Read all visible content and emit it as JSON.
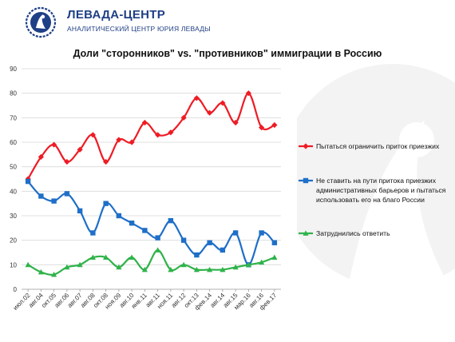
{
  "header": {
    "org_name": "ЛЕВАДА-ЦЕНТР",
    "org_subtitle": "АНАЛИТИЧЕСКИЙ ЦЕНТР ЮРИЯ ЛЕВАДЫ"
  },
  "chart_data": {
    "type": "line",
    "title": "Доли \"сторонников\" vs. \"противников\" иммиграции в Россию",
    "xlabel": "",
    "ylabel": "",
    "ylim": [
      0,
      90
    ],
    "yticks": [
      0,
      10,
      20,
      30,
      40,
      50,
      60,
      70,
      80,
      90
    ],
    "grid": true,
    "legend_position": "right",
    "x": [
      "июл.02",
      "авг.04",
      "окт.05",
      "авг.06",
      "авг.07",
      "авг.08",
      "окт.08",
      "ноя.09",
      "авг.10",
      "янв.11",
      "авг.11",
      "ноя.11",
      "авг.12",
      "окт.13",
      "фев.14",
      "авг.14",
      "авг.15",
      "мар.16",
      "авг.16",
      "фев.17"
    ],
    "series": [
      {
        "name": "Пытаться ограничить приток приезжих",
        "color": "#ee1c25",
        "marker": "diamond",
        "values": [
          45,
          54,
          59,
          52,
          57,
          63,
          52,
          61,
          60,
          68,
          63,
          64,
          70,
          78,
          72,
          76,
          68,
          80,
          66,
          67
        ]
      },
      {
        "name": "Не ставить на пути притока приезжих административных барьеров и пытаться использовать его на благо России",
        "color": "#1f6fc8",
        "marker": "square",
        "values": [
          44,
          38,
          36,
          39,
          32,
          23,
          35,
          30,
          27,
          24,
          21,
          28,
          20,
          14,
          19,
          16,
          23,
          10,
          23,
          19
        ]
      },
      {
        "name": "Затруднились ответить",
        "color": "#2fb34a",
        "marker": "triangle",
        "values": [
          10,
          7,
          6,
          9,
          10,
          13,
          13,
          9,
          13,
          8,
          16,
          8,
          10,
          8,
          8,
          8,
          9,
          10,
          11,
          13
        ]
      }
    ],
    "legend_lines": [
      [
        "Пытаться ограничить приток приезжих"
      ],
      [
        "Не ставить на пути притока приезжих",
        "административных барьеров и пытаться",
        "использовать его на благо России"
      ],
      [
        "Затруднились ответить"
      ]
    ]
  }
}
